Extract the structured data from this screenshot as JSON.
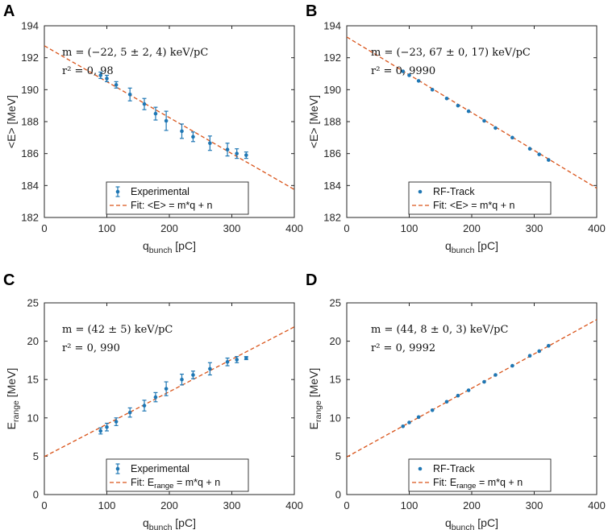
{
  "colors": {
    "marker": "#1f77b4",
    "fit": "#d95319",
    "axis": "#262626",
    "background": "#ffffff"
  },
  "chart_data": [
    {
      "panel": "A",
      "type": "scatter",
      "xlabel_main": "q",
      "xlabel_sub": "bunch",
      "xlabel_unit": " [pC]",
      "ylabel_main": "<E> [MeV]",
      "ylabel_sub": "",
      "ylabel_unit": "",
      "xlim": [
        0,
        400
      ],
      "ylim": [
        182,
        194
      ],
      "xticks": [
        0,
        100,
        200,
        300,
        400
      ],
      "yticks": [
        182,
        184,
        186,
        188,
        190,
        192,
        194
      ],
      "annotation": [
        "m = (−22, 5 ± 2, 4)  keV/pC",
        "r² = 0, 98"
      ],
      "legend": [
        "Experimental",
        "Fit: <E> = m*q + n"
      ],
      "legend_position": "bottom-center",
      "fit": {
        "slope": -0.0225,
        "intercept": 192.75
      },
      "series": [
        {
          "name": "Experimental",
          "error_bars": true,
          "x": [
            90,
            100,
            115,
            137,
            160,
            178,
            195,
            220,
            238,
            265,
            293,
            308,
            323
          ],
          "y": [
            190.9,
            190.7,
            190.3,
            189.7,
            189.1,
            188.5,
            188.05,
            187.4,
            187.05,
            186.65,
            186.25,
            186.0,
            185.9
          ],
          "err": [
            0.2,
            0.2,
            0.2,
            0.4,
            0.35,
            0.4,
            0.6,
            0.45,
            0.3,
            0.45,
            0.4,
            0.3,
            0.2
          ]
        }
      ]
    },
    {
      "panel": "B",
      "type": "scatter",
      "xlabel_main": "q",
      "xlabel_sub": "bunch",
      "xlabel_unit": " [pC]",
      "ylabel_main": "<E> [MeV]",
      "ylabel_sub": "",
      "ylabel_unit": "",
      "xlim": [
        0,
        400
      ],
      "ylim": [
        182,
        194
      ],
      "xticks": [
        0,
        100,
        200,
        300,
        400
      ],
      "yticks": [
        182,
        184,
        186,
        188,
        190,
        192,
        194
      ],
      "annotation": [
        "m = (−23, 67 ± 0, 17)  keV/pC",
        "r² = 0, 9990"
      ],
      "legend": [
        "RF-Track",
        "Fit: <E> = m*q + n"
      ],
      "legend_position": "bottom-center",
      "fit": {
        "slope": -0.02367,
        "intercept": 193.3
      },
      "series": [
        {
          "name": "RF-Track",
          "error_bars": false,
          "x": [
            90,
            100,
            115,
            137,
            160,
            178,
            195,
            220,
            238,
            265,
            293,
            308,
            323
          ],
          "y": [
            191.15,
            190.9,
            190.55,
            190.0,
            189.45,
            189.0,
            188.65,
            188.05,
            187.6,
            187.0,
            186.3,
            185.95,
            185.6
          ]
        }
      ]
    },
    {
      "panel": "C",
      "type": "scatter",
      "xlabel_main": "q",
      "xlabel_sub": "bunch",
      "xlabel_unit": " [pC]",
      "ylabel_main": "E",
      "ylabel_sub": "range",
      "ylabel_unit": " [MeV]",
      "xlim": [
        0,
        400
      ],
      "ylim": [
        0,
        25
      ],
      "xticks": [
        0,
        100,
        200,
        300,
        400
      ],
      "yticks": [
        0,
        5,
        10,
        15,
        20,
        25
      ],
      "annotation": [
        "m = (42 ± 5)  keV/pC",
        "r² = 0, 990"
      ],
      "legend": [
        "Experimental",
        "Fit: E",
        "range",
        " = m*q + n"
      ],
      "legend_position": "bottom-center",
      "fit": {
        "slope": 0.0423,
        "intercept": 4.95
      },
      "series": [
        {
          "name": "Experimental",
          "error_bars": true,
          "x": [
            90,
            100,
            115,
            137,
            160,
            178,
            195,
            220,
            238,
            265,
            293,
            308,
            323
          ],
          "y": [
            8.3,
            8.8,
            9.5,
            10.7,
            11.6,
            12.7,
            13.8,
            15.0,
            15.6,
            16.4,
            17.3,
            17.6,
            17.8
          ],
          "err": [
            0.4,
            0.5,
            0.5,
            0.6,
            0.7,
            0.6,
            0.9,
            0.7,
            0.5,
            0.8,
            0.5,
            0.4,
            0.2
          ]
        }
      ]
    },
    {
      "panel": "D",
      "type": "scatter",
      "xlabel_main": "q",
      "xlabel_sub": "bunch",
      "xlabel_unit": " [pC]",
      "ylabel_main": "E",
      "ylabel_sub": "range",
      "ylabel_unit": " [MeV]",
      "xlim": [
        0,
        400
      ],
      "ylim": [
        0,
        25
      ],
      "xticks": [
        0,
        100,
        200,
        300,
        400
      ],
      "yticks": [
        0,
        5,
        10,
        15,
        20,
        25
      ],
      "annotation": [
        "m = (44, 8 ± 0, 3)  keV/pC",
        "r² = 0, 9992"
      ],
      "legend": [
        "RF-Track",
        "Fit: E",
        "range",
        " = m*q + n"
      ],
      "legend_position": "bottom-center",
      "fit": {
        "slope": 0.0448,
        "intercept": 4.9
      },
      "series": [
        {
          "name": "RF-Track",
          "error_bars": false,
          "x": [
            90,
            100,
            115,
            137,
            160,
            178,
            195,
            220,
            238,
            265,
            293,
            308,
            323
          ],
          "y": [
            8.9,
            9.4,
            10.1,
            11.0,
            12.1,
            12.9,
            13.6,
            14.7,
            15.6,
            16.8,
            18.1,
            18.7,
            19.4
          ]
        }
      ]
    }
  ]
}
